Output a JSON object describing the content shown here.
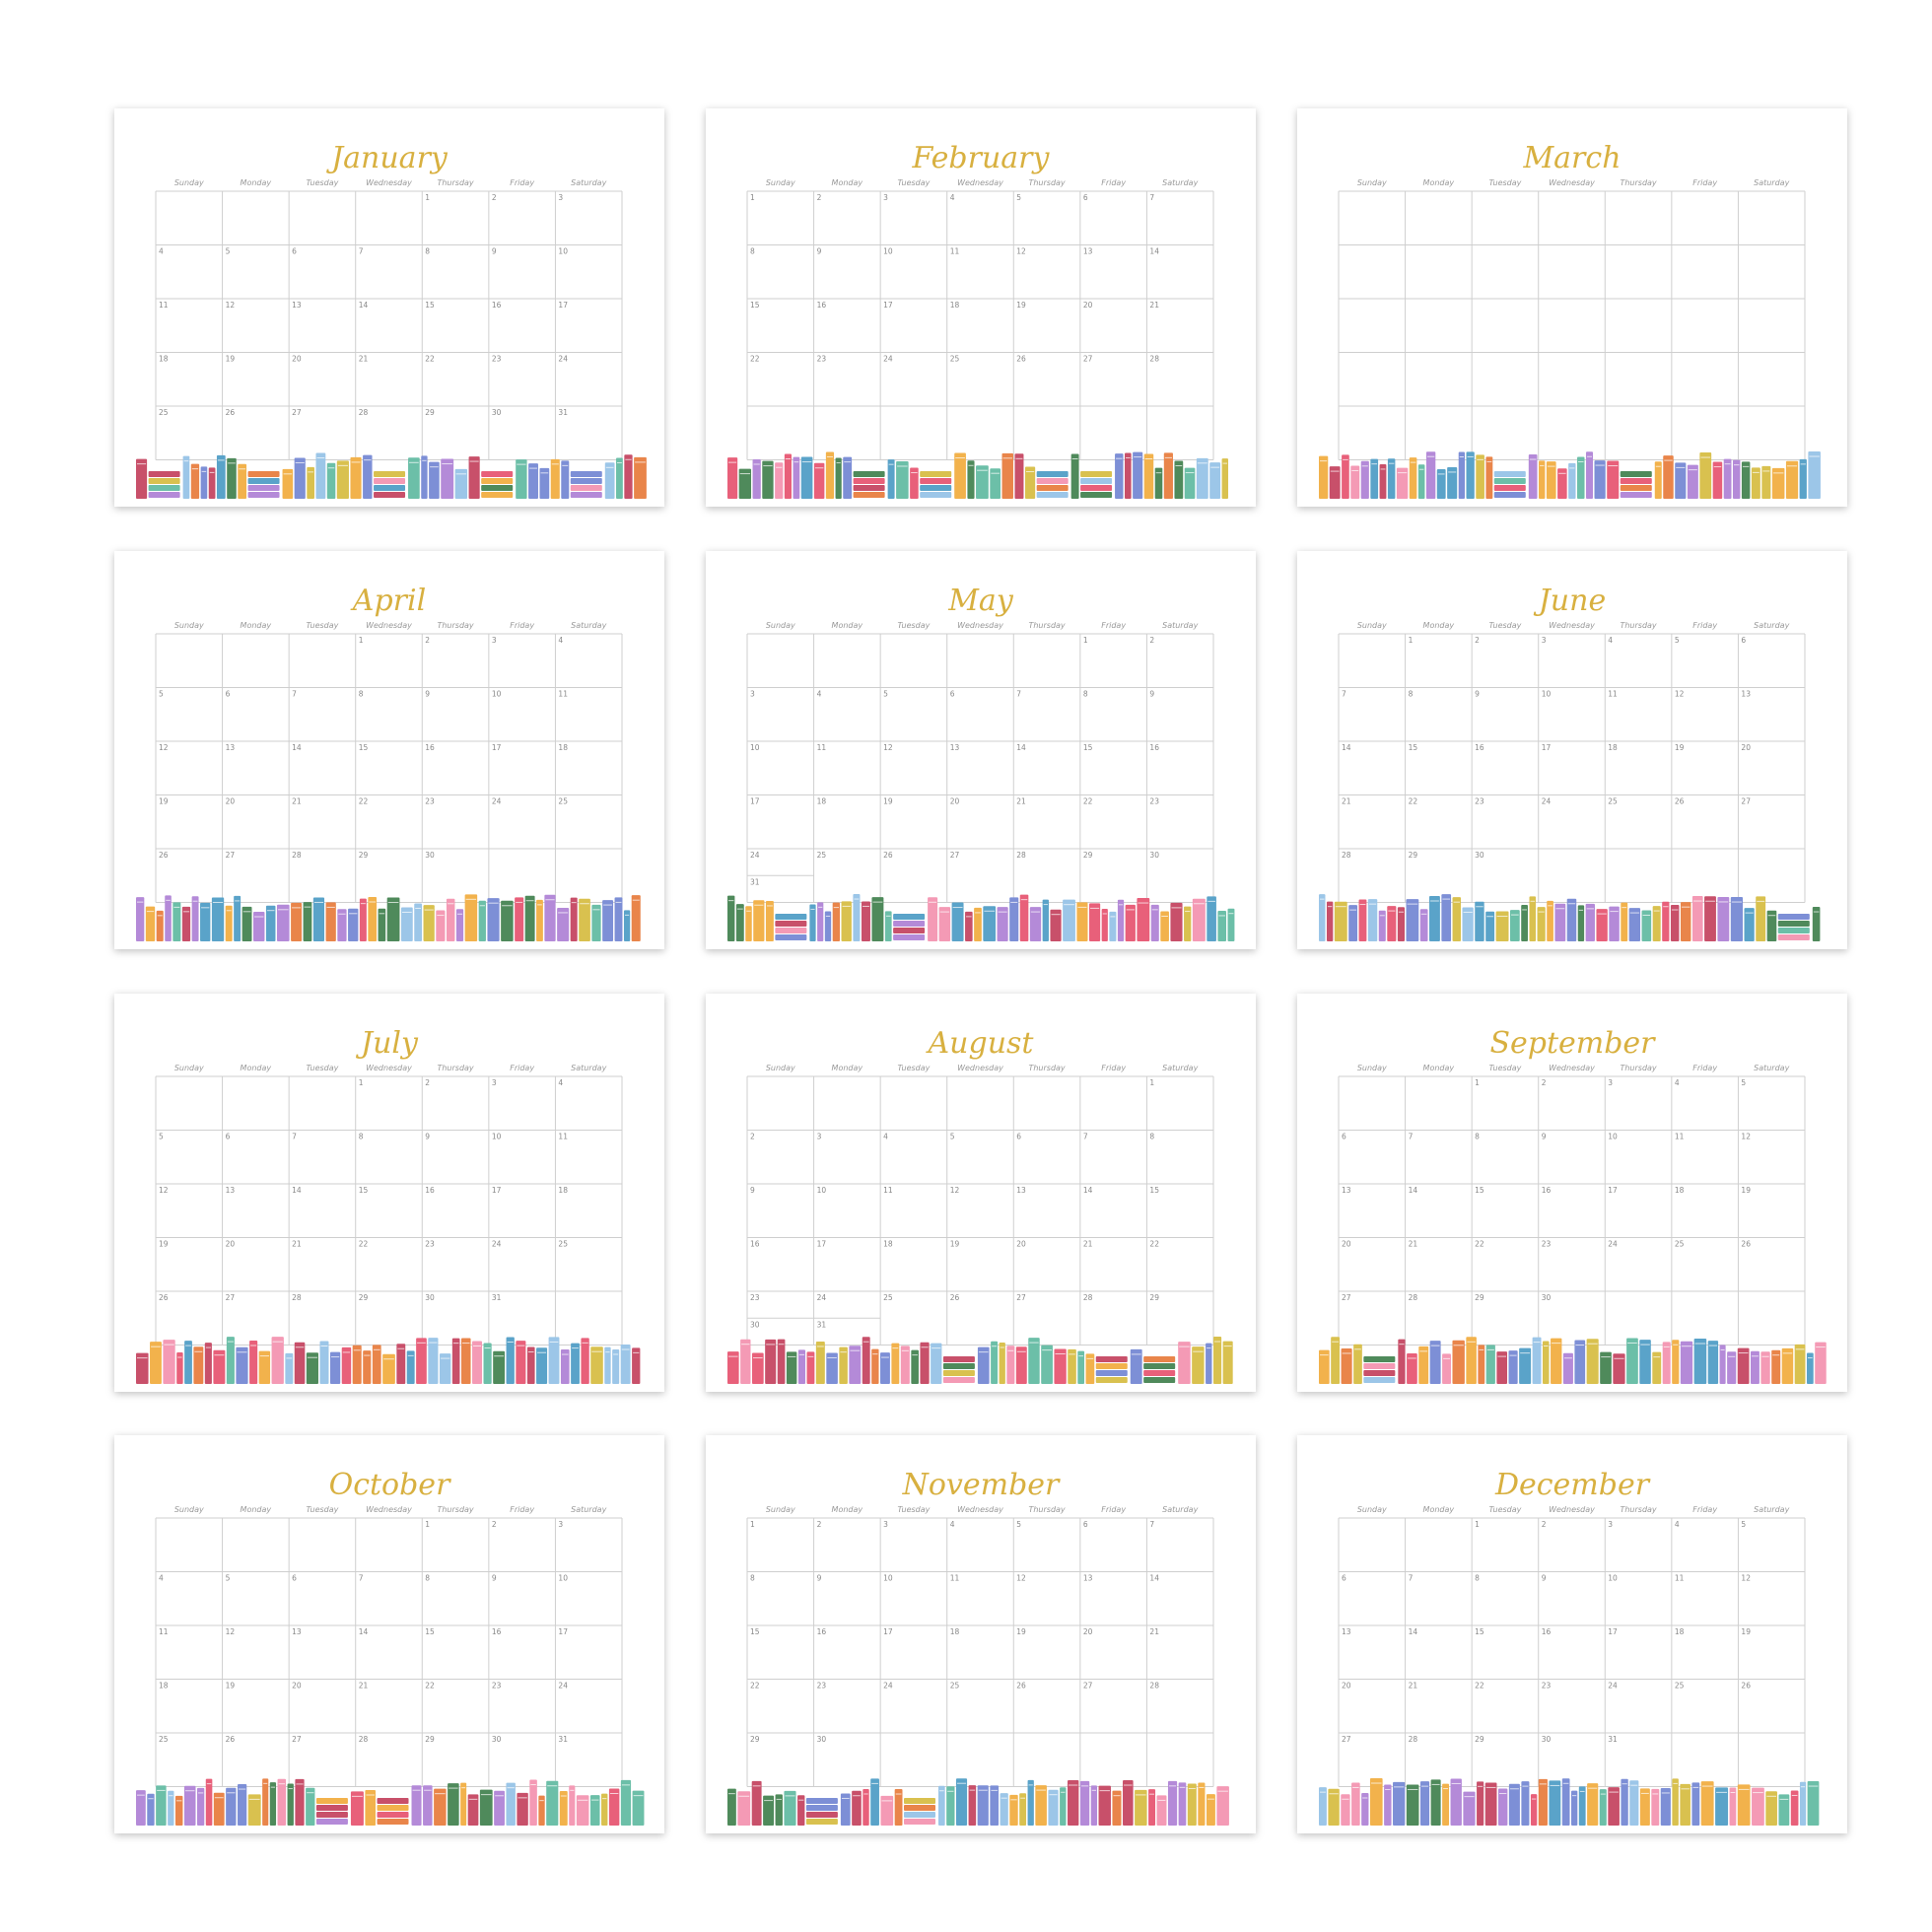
{
  "weekdays": [
    "Sunday",
    "Monday",
    "Tuesday",
    "Wednesday",
    "Thursday",
    "Friday",
    "Saturday"
  ],
  "months": [
    {
      "name": "January",
      "weeks": [
        [
          null,
          null,
          null,
          null,
          1,
          2,
          3
        ],
        [
          4,
          5,
          6,
          7,
          8,
          9,
          10
        ],
        [
          11,
          12,
          13,
          14,
          15,
          16,
          17
        ],
        [
          18,
          19,
          20,
          21,
          22,
          23,
          24
        ],
        [
          25,
          26,
          27,
          28,
          29,
          30,
          31
        ]
      ]
    },
    {
      "name": "February",
      "weeks": [
        [
          1,
          2,
          3,
          4,
          5,
          6,
          7
        ],
        [
          8,
          9,
          10,
          11,
          12,
          13,
          14
        ],
        [
          15,
          16,
          17,
          18,
          19,
          20,
          21
        ],
        [
          22,
          23,
          24,
          25,
          26,
          27,
          28
        ]
      ]
    },
    {
      "name": "March"
    },
    {
      "name": "April",
      "weeks": [
        [
          null,
          null,
          null,
          1,
          2,
          3,
          4
        ],
        [
          5,
          6,
          7,
          8,
          9,
          10,
          11
        ],
        [
          12,
          13,
          14,
          15,
          16,
          17,
          18
        ],
        [
          19,
          20,
          21,
          22,
          23,
          24,
          25
        ],
        [
          26,
          27,
          28,
          29,
          30
        ]
      ]
    },
    {
      "name": "May",
      "weeks": [
        [
          null,
          null,
          null,
          null,
          null,
          1,
          2
        ],
        [
          3,
          4,
          5,
          6,
          7,
          8,
          9
        ],
        [
          10,
          11,
          12,
          13,
          14,
          15,
          16
        ],
        [
          17,
          18,
          19,
          20,
          21,
          22,
          23
        ],
        [
          24,
          25,
          26,
          27,
          28,
          29,
          30
        ],
        [
          31
        ]
      ]
    },
    {
      "name": "June",
      "weeks": [
        [
          null,
          1,
          2,
          3,
          4,
          5,
          6
        ],
        [
          7,
          8,
          9,
          10,
          11,
          12,
          13
        ],
        [
          14,
          15,
          16,
          17,
          18,
          19,
          20
        ],
        [
          21,
          22,
          23,
          24,
          25,
          26,
          27
        ],
        [
          28,
          29,
          30
        ]
      ]
    },
    {
      "name": "July",
      "weeks": [
        [
          null,
          null,
          null,
          1,
          2,
          3,
          4
        ],
        [
          5,
          6,
          7,
          8,
          9,
          10,
          11
        ],
        [
          12,
          13,
          14,
          15,
          16,
          17,
          18
        ],
        [
          19,
          20,
          21,
          22,
          23,
          24,
          25
        ],
        [
          26,
          27,
          28,
          29,
          30,
          31
        ]
      ]
    },
    {
      "name": "August",
      "weeks": [
        [
          null,
          null,
          null,
          null,
          null,
          null,
          1
        ],
        [
          2,
          3,
          4,
          5,
          6,
          7,
          8
        ],
        [
          9,
          10,
          11,
          12,
          13,
          14,
          15
        ],
        [
          16,
          17,
          18,
          19,
          20,
          21,
          22
        ],
        [
          23,
          24,
          25,
          26,
          27,
          28,
          29
        ],
        [
          30,
          31
        ]
      ]
    },
    {
      "name": "September",
      "weeks": [
        [
          null,
          null,
          1,
          2,
          3,
          4,
          5
        ],
        [
          6,
          7,
          8,
          9,
          10,
          11,
          12
        ],
        [
          13,
          14,
          15,
          16,
          17,
          18,
          19
        ],
        [
          20,
          21,
          22,
          23,
          24,
          25,
          26
        ],
        [
          27,
          28,
          29,
          30
        ]
      ]
    },
    {
      "name": "October",
      "weeks": [
        [
          null,
          null,
          null,
          null,
          1,
          2,
          3
        ],
        [
          4,
          5,
          6,
          7,
          8,
          9,
          10
        ],
        [
          11,
          12,
          13,
          14,
          15,
          16,
          17
        ],
        [
          18,
          19,
          20,
          21,
          22,
          23,
          24
        ],
        [
          25,
          26,
          27,
          28,
          29,
          30,
          31
        ]
      ]
    },
    {
      "name": "November",
      "weeks": [
        [
          1,
          2,
          3,
          4,
          5,
          6,
          7
        ],
        [
          8,
          9,
          10,
          11,
          12,
          13,
          14
        ],
        [
          15,
          16,
          17,
          18,
          19,
          20,
          21
        ],
        [
          22,
          23,
          24,
          25,
          26,
          27,
          28
        ],
        [
          29,
          30
        ]
      ]
    },
    {
      "name": "December",
      "weeks": [
        [
          null,
          null,
          1,
          2,
          3,
          4,
          5
        ],
        [
          6,
          7,
          8,
          9,
          10,
          11,
          12
        ],
        [
          13,
          14,
          15,
          16,
          17,
          18,
          19
        ],
        [
          20,
          21,
          22,
          23,
          24,
          25,
          26
        ],
        [
          27,
          28,
          29,
          30,
          31
        ]
      ]
    }
  ]
}
